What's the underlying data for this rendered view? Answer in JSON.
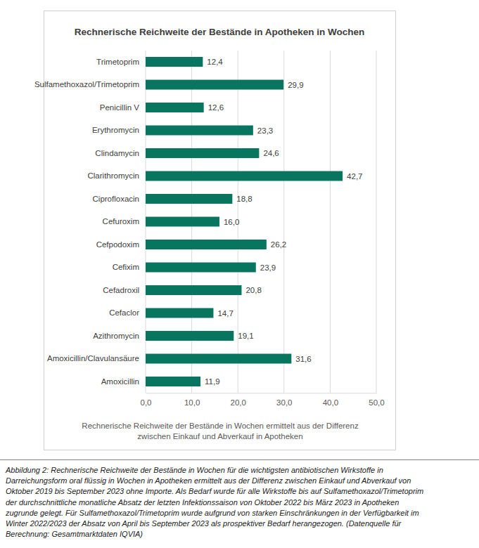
{
  "chart_data": {
    "type": "bar",
    "orientation": "horizontal",
    "title": "Rechnerische Reichweite der Bestände in Apotheken in Wochen",
    "categories": [
      "Trimetoprim",
      "Sulfamethoxazol/Trimetoprim",
      "Penicillin V",
      "Erythromycin",
      "Clindamycin",
      "Clarithromycin",
      "Ciprofloxacin",
      "Cefuroxim",
      "Cefpodoxim",
      "Cefixim",
      "Cefadroxil",
      "Cefaclor",
      "Azithromycin",
      "Amoxicillin/Clavulansäure",
      "Amoxicillin"
    ],
    "values": [
      12.4,
      29.9,
      12.6,
      23.3,
      24.6,
      42.7,
      18.8,
      16.0,
      26.2,
      23.9,
      20.8,
      14.7,
      19.1,
      31.6,
      11.9
    ],
    "value_labels": [
      "12,4",
      "29,9",
      "12,6",
      "23,3",
      "24,6",
      "42,7",
      "18,8",
      "16,0",
      "26,2",
      "23,9",
      "20,8",
      "14,7",
      "19,1",
      "31,6",
      "11,9"
    ],
    "data_labels": true,
    "color": "#08755f",
    "xlim": [
      0,
      50
    ],
    "xticks": [
      {
        "value": 0,
        "label": "0,0"
      },
      {
        "value": 10,
        "label": "10,0"
      },
      {
        "value": 20,
        "label": "20,0"
      },
      {
        "value": 30,
        "label": "30,0"
      },
      {
        "value": 40,
        "label": "40,0"
      },
      {
        "value": 50,
        "label": "50,0"
      }
    ],
    "grid": true,
    "xlabel": [
      "Rechnerische Reichweite der Bestände in Wochen ermittelt aus der Differenz",
      "zwischen Einkauf und Abverkauf in Apotheken"
    ],
    "caption": [
      "Abbildung 2:  Rechnerische Reichweite der Bestände in Wochen für die wichtigsten antibiotischen Wirkstoffe in",
      "Darreichungsform oral flüssig in Wochen in Apotheken ermittelt aus der Differenz zwischen Einkauf und Abverkauf von",
      "Oktober 2019 bis September 2023 ohne Importe. Als Bedarf wurde für alle Wirkstoffe bis auf Sulfamethoxazol/Trimetoprim",
      "der durchschnittliche monatliche Absatz der letzten Infektionssaison von Oktober 2022 bis März 2023 in Apotheken",
      "zugrunde gelegt. Für Sulfamethoxazol/Trimetoprim wurde aufgrund von starken Einschränkungen in der Verfügbarkeit im",
      "Winter 2022/2023 der Absatz von April bis September 2023 als prospektiver Bedarf herangezogen. (Datenquelle für",
      "Berechnung: Gesamtmarktdaten IQVIA)"
    ]
  }
}
